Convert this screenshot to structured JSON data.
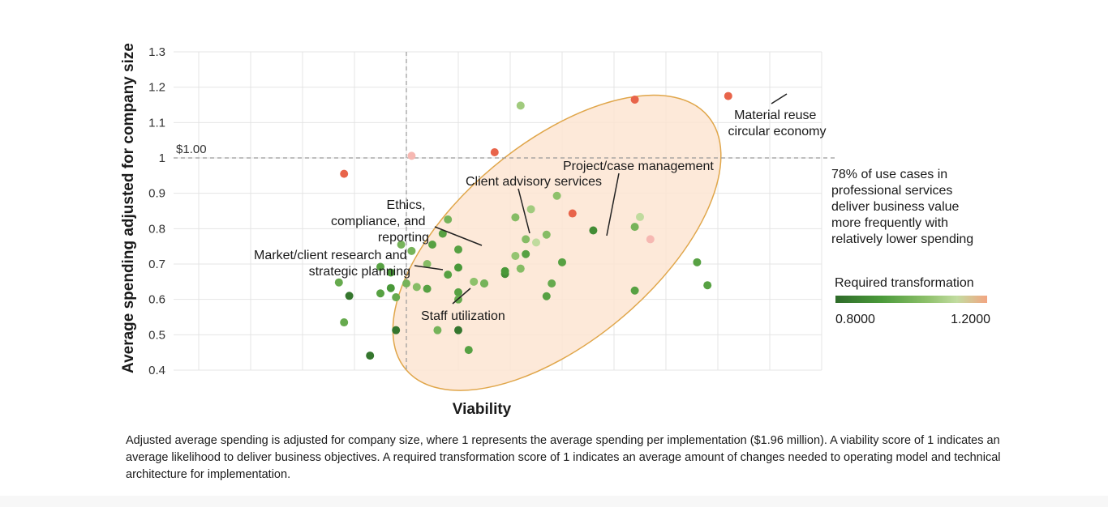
{
  "chart_data": {
    "type": "scatter",
    "title": "",
    "xlabel": "Viability",
    "ylabel": "Average spending adjusted for company size",
    "ylim": [
      0.4,
      1.3
    ],
    "yticks": [
      0.4,
      0.5,
      0.6,
      0.7,
      0.8,
      0.9,
      1,
      1.1,
      1.2,
      1.3
    ],
    "ytick_labels": [
      "0.4",
      "0.5",
      "0.6",
      "0.7",
      "0.8",
      "0.9",
      "1",
      "1.1",
      "1.2",
      "1.3"
    ],
    "xlim": [
      0.5,
      1.85
    ],
    "x_gridlines": [
      0.6,
      0.7,
      0.8,
      0.9,
      1.0,
      1.1,
      1.2,
      1.3,
      1.4,
      1.5,
      1.6,
      1.7,
      1.8
    ],
    "reference_lines": {
      "horizontal": {
        "y": 1.0,
        "label": "$1.00"
      },
      "vertical": {
        "x": 1.0
      }
    },
    "highlight_ellipse": {
      "cx": 1.29,
      "cy": 0.76,
      "rx": 0.38,
      "ry": 0.28,
      "angle_deg": -40
    },
    "color_scale": {
      "title": "Required transformation",
      "min": 0.8,
      "max": 1.2,
      "min_label": "0.8000",
      "max_label": "1.2000",
      "colors": [
        "#2e6b2a",
        "#4a9a3a",
        "#8dc06a",
        "#c2dca0",
        "#f3a582",
        "#e8825e"
      ]
    },
    "points": [
      {
        "x": 1.62,
        "y": 1.175,
        "t": 1.18
      },
      {
        "x": 1.44,
        "y": 1.165,
        "t": 1.18
      },
      {
        "x": 1.22,
        "y": 1.148,
        "t": 1.0
      },
      {
        "x": 1.17,
        "y": 1.016,
        "t": 1.18
      },
      {
        "x": 1.01,
        "y": 1.006,
        "t": 1.1
      },
      {
        "x": 0.88,
        "y": 0.955,
        "t": 1.18
      },
      {
        "x": 1.32,
        "y": 0.843,
        "t": 1.18
      },
      {
        "x": 1.45,
        "y": 0.833,
        "t": 1.06
      },
      {
        "x": 1.47,
        "y": 0.77,
        "t": 1.1
      },
      {
        "x": 1.44,
        "y": 0.805,
        "t": 0.94
      },
      {
        "x": 1.36,
        "y": 0.795,
        "t": 0.86
      },
      {
        "x": 1.29,
        "y": 0.893,
        "t": 0.97
      },
      {
        "x": 1.24,
        "y": 0.855,
        "t": 1.0
      },
      {
        "x": 1.21,
        "y": 0.832,
        "t": 0.96
      },
      {
        "x": 1.27,
        "y": 0.783,
        "t": 0.96
      },
      {
        "x": 1.23,
        "y": 0.77,
        "t": 0.96
      },
      {
        "x": 1.23,
        "y": 0.728,
        "t": 0.9
      },
      {
        "x": 1.25,
        "y": 0.761,
        "t": 1.05
      },
      {
        "x": 1.21,
        "y": 0.723,
        "t": 0.98
      },
      {
        "x": 1.3,
        "y": 0.705,
        "t": 0.9
      },
      {
        "x": 1.22,
        "y": 0.687,
        "t": 0.96
      },
      {
        "x": 1.28,
        "y": 0.645,
        "t": 0.92
      },
      {
        "x": 1.19,
        "y": 0.672,
        "t": 0.86
      },
      {
        "x": 1.19,
        "y": 0.68,
        "t": 0.88
      },
      {
        "x": 1.15,
        "y": 0.645,
        "t": 0.9
      },
      {
        "x": 1.13,
        "y": 0.65,
        "t": 0.97
      },
      {
        "x": 1.15,
        "y": 0.645,
        "t": 0.94
      },
      {
        "x": 1.27,
        "y": 0.609,
        "t": 0.9
      },
      {
        "x": 1.44,
        "y": 0.625,
        "t": 0.9
      },
      {
        "x": 1.56,
        "y": 0.705,
        "t": 0.9
      },
      {
        "x": 1.58,
        "y": 0.64,
        "t": 0.9
      },
      {
        "x": 1.1,
        "y": 0.741,
        "t": 0.9
      },
      {
        "x": 1.1,
        "y": 0.69,
        "t": 0.88
      },
      {
        "x": 1.08,
        "y": 0.67,
        "t": 0.9
      },
      {
        "x": 1.1,
        "y": 0.62,
        "t": 0.9
      },
      {
        "x": 1.1,
        "y": 0.6,
        "t": 0.92
      },
      {
        "x": 1.08,
        "y": 0.826,
        "t": 0.94
      },
      {
        "x": 1.07,
        "y": 0.786,
        "t": 0.9
      },
      {
        "x": 1.05,
        "y": 0.755,
        "t": 0.9
      },
      {
        "x": 1.02,
        "y": 0.635,
        "t": 0.96
      },
      {
        "x": 1.04,
        "y": 0.63,
        "t": 0.9
      },
      {
        "x": 1.04,
        "y": 0.7,
        "t": 0.96
      },
      {
        "x": 1.12,
        "y": 0.457,
        "t": 0.9
      },
      {
        "x": 1.06,
        "y": 0.513,
        "t": 0.94
      },
      {
        "x": 1.1,
        "y": 0.513,
        "t": 0.82
      },
      {
        "x": 0.99,
        "y": 0.755,
        "t": 0.94
      },
      {
        "x": 1.01,
        "y": 0.737,
        "t": 0.94
      },
      {
        "x": 0.95,
        "y": 0.692,
        "t": 0.9
      },
      {
        "x": 0.97,
        "y": 0.676,
        "t": 0.88
      },
      {
        "x": 0.97,
        "y": 0.632,
        "t": 0.88
      },
      {
        "x": 1.0,
        "y": 0.645,
        "t": 0.94
      },
      {
        "x": 0.98,
        "y": 0.606,
        "t": 0.92
      },
      {
        "x": 0.95,
        "y": 0.617,
        "t": 0.9
      },
      {
        "x": 0.89,
        "y": 0.61,
        "t": 0.82
      },
      {
        "x": 0.87,
        "y": 0.648,
        "t": 0.92
      },
      {
        "x": 0.88,
        "y": 0.535,
        "t": 0.92
      },
      {
        "x": 0.93,
        "y": 0.441,
        "t": 0.82
      },
      {
        "x": 0.98,
        "y": 0.513,
        "t": 0.82
      }
    ],
    "annotations": [
      {
        "lines": [
          "Material reuse",
          "circular economy"
        ]
      },
      {
        "lines": [
          "Project/case management"
        ]
      },
      {
        "lines": [
          "Client advisory services"
        ]
      },
      {
        "lines": [
          "Ethics,",
          "compliance, and",
          "reporting"
        ]
      },
      {
        "lines": [
          "Market/client research and",
          "strategic planning"
        ]
      },
      {
        "lines": [
          "Staff utilization"
        ]
      }
    ],
    "side_note": [
      "78% of use cases in",
      "professional services",
      "deliver business value",
      "more frequently with",
      "relatively lower spending"
    ]
  },
  "footnote": "Adjusted average spending is adjusted for company size, where 1 represents the average spending per implementation ($1.96 million). A viability score of 1 indicates an average likelihood to deliver business objectives. A required transformation score of 1 indicates an average amount of changes needed to operating model and technical architecture for implementation."
}
